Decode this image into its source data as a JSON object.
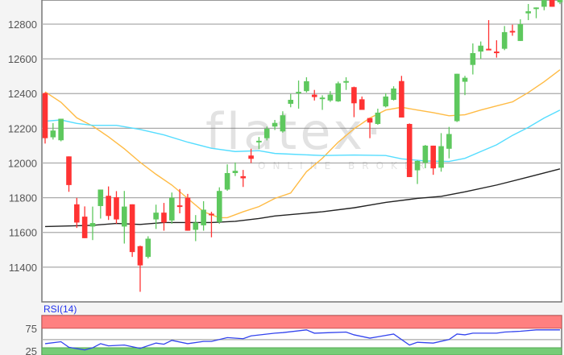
{
  "chart_data": [
    {
      "type": "candlestick",
      "title": "",
      "xlabel": "",
      "ylabel": "",
      "ylim": [
        11200,
        12939
      ],
      "yticks": [
        "11400",
        "11600",
        "11800",
        "12000",
        "12200",
        "12400",
        "12600",
        "12800"
      ],
      "grid": true,
      "colors": {
        "up": "#5ec85e",
        "down": "#ff3333",
        "ma_orange": "#ffbb44",
        "ma_cyan": "#55ddff",
        "ma_black": "#222222",
        "grid": "#aaaaaa"
      },
      "watermark": {
        "logo": "flatex·",
        "tagline": "ONLINE BROKER"
      },
      "candles": [
        [
          12403,
          12406,
          12112,
          12143
        ],
        [
          12148,
          12230,
          12135,
          12187
        ],
        [
          12131,
          12255,
          12125,
          12255
        ],
        [
          12038,
          12038,
          11834,
          11873
        ],
        [
          11762,
          11799,
          11626,
          11657
        ],
        [
          11691,
          11750,
          11567,
          11567
        ],
        [
          11634,
          11749,
          11556,
          11654
        ],
        [
          11752,
          11847,
          11680,
          11847
        ],
        [
          11811,
          11865,
          11672,
          11695
        ],
        [
          11803,
          11838,
          11650,
          11675
        ],
        [
          11634,
          11839,
          11536,
          11749
        ],
        [
          11762,
          11762,
          11459,
          11487
        ],
        [
          11521,
          11524,
          11258,
          11410
        ],
        [
          11459,
          11578,
          11450,
          11564
        ],
        [
          11675,
          11760,
          11620,
          11714
        ],
        [
          11714,
          11770,
          11610,
          11657
        ],
        [
          11669,
          11830,
          11650,
          11800
        ],
        [
          11756,
          11850,
          11710,
          11749
        ],
        [
          11800,
          11822,
          11610,
          11610
        ],
        [
          11615,
          11700,
          11550,
          11657
        ],
        [
          11641,
          11780,
          11610,
          11731
        ],
        [
          11708,
          11719,
          11572,
          11703
        ],
        [
          11660,
          11860,
          11650,
          11839
        ],
        [
          11847,
          11992,
          11840,
          11942
        ],
        [
          11942,
          12003,
          11925,
          11955
        ],
        [
          11924,
          11960,
          11862,
          11912
        ],
        [
          12043,
          12082,
          12000,
          12024
        ],
        [
          12123,
          12150,
          12080,
          12128
        ],
        [
          12143,
          12210,
          12130,
          12197
        ],
        [
          12210,
          12248,
          12190,
          12231
        ],
        [
          12182,
          12298,
          12175,
          12275
        ],
        [
          12341,
          12398,
          12321,
          12364
        ],
        [
          12405,
          12475,
          12313,
          12410
        ],
        [
          12414,
          12494,
          12406,
          12471
        ],
        [
          12394,
          12421,
          12360,
          12380
        ],
        [
          12373,
          12390,
          12306,
          12377
        ],
        [
          12360,
          12414,
          12352,
          12394
        ],
        [
          12355,
          12469,
          12352,
          12459
        ],
        [
          12468,
          12494,
          12421,
          12472
        ],
        [
          12437,
          12440,
          12264,
          12344
        ],
        [
          12367,
          12383,
          12306,
          12306
        ],
        [
          12259,
          12259,
          12143,
          12233
        ],
        [
          12225,
          12313,
          12220,
          12290
        ],
        [
          12326,
          12402,
          12320,
          12383
        ],
        [
          12364,
          12442,
          12360,
          12429
        ],
        [
          12472,
          12502,
          12262,
          12262
        ],
        [
          12225,
          12228,
          11919,
          11919
        ],
        [
          11958,
          12015,
          11879,
          12012
        ],
        [
          12001,
          12104,
          11970,
          12100
        ],
        [
          12100,
          12100,
          11932,
          11969
        ],
        [
          11973,
          12172,
          11950,
          12097
        ],
        [
          12082,
          12208,
          12027,
          12167
        ],
        [
          12241,
          12514,
          12236,
          12514
        ],
        [
          12468,
          12502,
          12391,
          12491
        ],
        [
          12565,
          12689,
          12510,
          12633
        ],
        [
          12642,
          12700,
          12600,
          12676
        ],
        [
          12658,
          12823,
          12652,
          12652
        ],
        [
          12642,
          12707,
          12607,
          12636
        ],
        [
          12658,
          12789,
          12650,
          12754
        ],
        [
          12761,
          12797,
          12733,
          12757
        ],
        [
          12703,
          12828,
          12703,
          12800
        ],
        [
          12862,
          12916,
          12823,
          12874
        ],
        [
          12890,
          12896,
          12834,
          12896
        ],
        [
          12900,
          12939,
          12880,
          12939
        ],
        [
          12939,
          12939,
          12900,
          12900
        ],
        [
          12926,
          12939,
          12915,
          12939
        ]
      ],
      "candle_format": [
        "open",
        "high",
        "low",
        "close"
      ],
      "moving_averages": [
        {
          "color": "#ffbb44",
          "points": [
            [
              0,
              12410
            ],
            [
              2,
              12350
            ],
            [
              4,
              12260
            ],
            [
              6,
              12213
            ],
            [
              8,
              12151
            ],
            [
              10,
              12082
            ],
            [
              12,
              12004
            ],
            [
              14,
              11935
            ],
            [
              16,
              11873
            ],
            [
              18,
              11796
            ],
            [
              20,
              11719
            ],
            [
              22,
              11685
            ],
            [
              23,
              11685
            ],
            [
              25,
              11719
            ],
            [
              27,
              11749
            ],
            [
              29,
              11796
            ],
            [
              31,
              11827
            ],
            [
              33,
              11950
            ],
            [
              35,
              12027
            ],
            [
              37,
              12120
            ],
            [
              39,
              12197
            ],
            [
              41,
              12259
            ],
            [
              43,
              12305
            ],
            [
              45,
              12321
            ],
            [
              47,
              12305
            ],
            [
              49,
              12290
            ],
            [
              51,
              12272
            ],
            [
              53,
              12278
            ],
            [
              55,
              12305
            ],
            [
              57,
              12329
            ],
            [
              59,
              12352
            ],
            [
              61,
              12406
            ],
            [
              63,
              12468
            ],
            [
              65,
              12537
            ]
          ]
        },
        {
          "color": "#55ddff",
          "points": [
            [
              0,
              12241
            ],
            [
              2,
              12248
            ],
            [
              4,
              12228
            ],
            [
              6,
              12217
            ],
            [
              9,
              12217
            ],
            [
              12,
              12193
            ],
            [
              15,
              12162
            ],
            [
              18,
              12120
            ],
            [
              21,
              12085
            ],
            [
              24,
              12066
            ],
            [
              27,
              12071
            ],
            [
              29,
              12055
            ],
            [
              31,
              12051
            ],
            [
              35,
              12043
            ],
            [
              39,
              12046
            ],
            [
              43,
              12043
            ],
            [
              45,
              12024
            ],
            [
              48,
              12012
            ],
            [
              51,
              12009
            ],
            [
              53,
              12027
            ],
            [
              55,
              12066
            ],
            [
              57,
              12105
            ],
            [
              59,
              12159
            ],
            [
              61,
              12205
            ],
            [
              63,
              12259
            ],
            [
              65,
              12305
            ]
          ]
        },
        {
          "color": "#222222",
          "points": [
            [
              0,
              11634
            ],
            [
              6,
              11641
            ],
            [
              9,
              11652
            ],
            [
              12,
              11646
            ],
            [
              15,
              11657
            ],
            [
              21,
              11657
            ],
            [
              24,
              11664
            ],
            [
              27,
              11680
            ],
            [
              29,
              11695
            ],
            [
              31,
              11703
            ],
            [
              35,
              11719
            ],
            [
              39,
              11742
            ],
            [
              43,
              11773
            ],
            [
              47,
              11796
            ],
            [
              50,
              11808
            ],
            [
              53,
              11834
            ],
            [
              57,
              11873
            ],
            [
              61,
              11919
            ],
            [
              65,
              11966
            ]
          ]
        }
      ]
    },
    {
      "type": "line",
      "title": "RSI(14)",
      "ylim": [
        16,
        103
      ],
      "yticks": [
        "25",
        "75"
      ],
      "bands": {
        "overbought": [
          75,
          103
        ],
        "oversold": [
          16,
          32
        ]
      },
      "colors": {
        "line": "#3344ee",
        "overbought": "#ff8080",
        "oversold": "#77cc77"
      },
      "points": [
        [
          0,
          41.0
        ],
        [
          2,
          45.3
        ],
        [
          3,
          33.1
        ],
        [
          5,
          27.1
        ],
        [
          6,
          31.9
        ],
        [
          7,
          41.0
        ],
        [
          8,
          36.2
        ],
        [
          10,
          38.0
        ],
        [
          12,
          30.7
        ],
        [
          14,
          42.3
        ],
        [
          15,
          39.8
        ],
        [
          16,
          48.3
        ],
        [
          18,
          41.0
        ],
        [
          20,
          45.9
        ],
        [
          21,
          45.9
        ],
        [
          23,
          54.4
        ],
        [
          25,
          52.0
        ],
        [
          26,
          58.1
        ],
        [
          29,
          64.1
        ],
        [
          30,
          65.4
        ],
        [
          33,
          71.4
        ],
        [
          34,
          64.1
        ],
        [
          36,
          65.4
        ],
        [
          38,
          66.6
        ],
        [
          39,
          60.5
        ],
        [
          41,
          53.2
        ],
        [
          42,
          56.2
        ],
        [
          44,
          62.3
        ],
        [
          46,
          38.0
        ],
        [
          47,
          44.1
        ],
        [
          49,
          42.3
        ],
        [
          51,
          50.2
        ],
        [
          52,
          62.3
        ],
        [
          53,
          60.5
        ],
        [
          54,
          64.1
        ],
        [
          57,
          64.1
        ],
        [
          58,
          66.6
        ],
        [
          60,
          68.4
        ],
        [
          62,
          71.4
        ],
        [
          65,
          71.4
        ]
      ]
    }
  ]
}
